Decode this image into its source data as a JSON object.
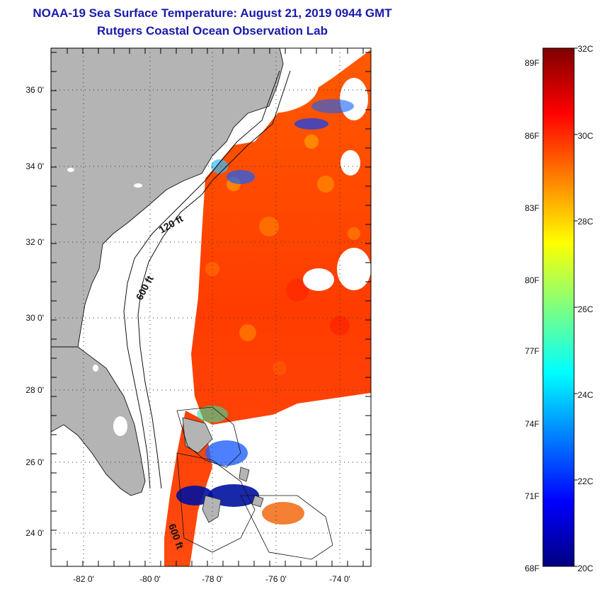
{
  "header": {
    "title": "NOAA-19 Sea Surface Temperature:  August 21, 2019 0944 GMT",
    "subtitle": "Rutgers Coastal Ocean Observation Lab"
  },
  "map": {
    "lat_labels": [
      "36 0'",
      "34 0'",
      "32 0'",
      "30 0'",
      "28 0'",
      "26 0'",
      "24 0'"
    ],
    "lon_labels": [
      "-82 0'",
      "-80 0'",
      "-78 0'",
      "-76 0'",
      "-74 0'"
    ],
    "contour_labels": [
      "120 ft",
      "600 ft",
      "600 ft"
    ],
    "land_color": "#b4b4b4",
    "shelf_color": "#ffffff"
  },
  "colorbar": {
    "fahrenheit_labels": [
      "89F",
      "86F",
      "83F",
      "80F",
      "77F",
      "74F",
      "71F",
      "68F"
    ],
    "celsius_labels": [
      "32C",
      "30C",
      "28C",
      "26C",
      "24C",
      "22C",
      "20C"
    ],
    "min_c": 20,
    "max_c": 32,
    "colormap": [
      "#00007f",
      "#0000ff",
      "#007fff",
      "#00ffff",
      "#7fff7f",
      "#ffff00",
      "#ff7f00",
      "#ff0000",
      "#7f0000"
    ]
  }
}
